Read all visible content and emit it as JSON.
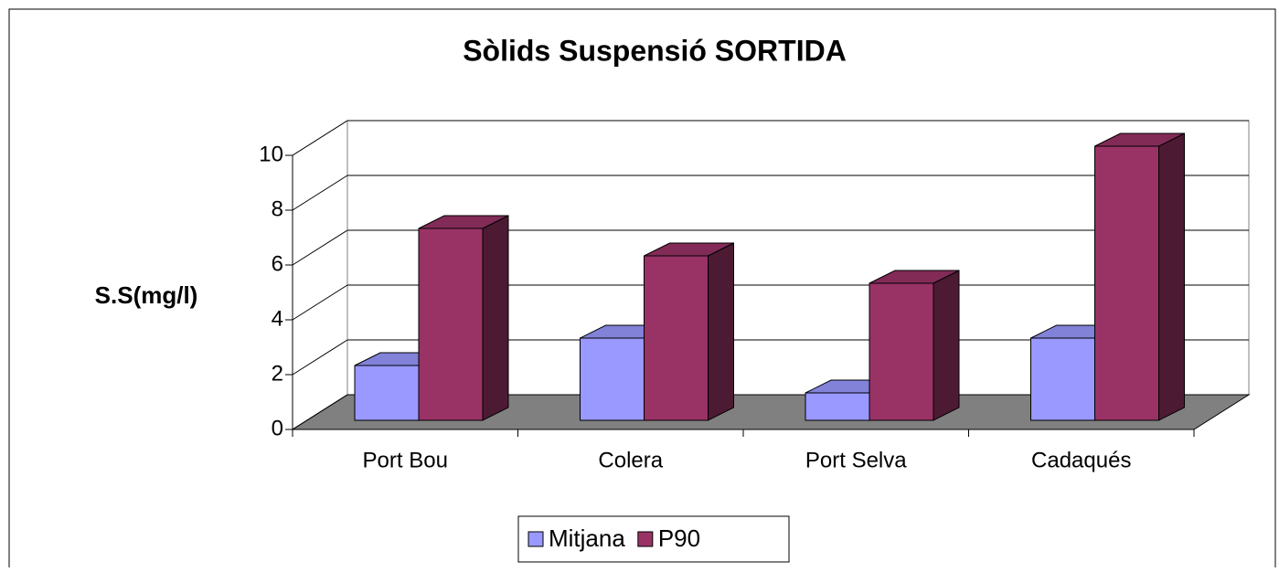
{
  "chart_data": {
    "type": "bar3d",
    "title": "Sòlids Suspensió SORTIDA",
    "y_label": "S.S(mg/l)",
    "categories": [
      "Port Bou",
      "Colera",
      "Port Selva",
      "Cadaqués"
    ],
    "series": [
      {
        "name": "Mitjana",
        "color": "#9999ff",
        "values": [
          2,
          3,
          1,
          3
        ]
      },
      {
        "name": "P90",
        "color": "#993366",
        "values": [
          7,
          6,
          5,
          10
        ]
      }
    ],
    "ylim": [
      0,
      10
    ],
    "yticks": [
      0,
      2,
      4,
      6,
      8,
      10
    ],
    "grid": true,
    "legend": "bottom"
  }
}
